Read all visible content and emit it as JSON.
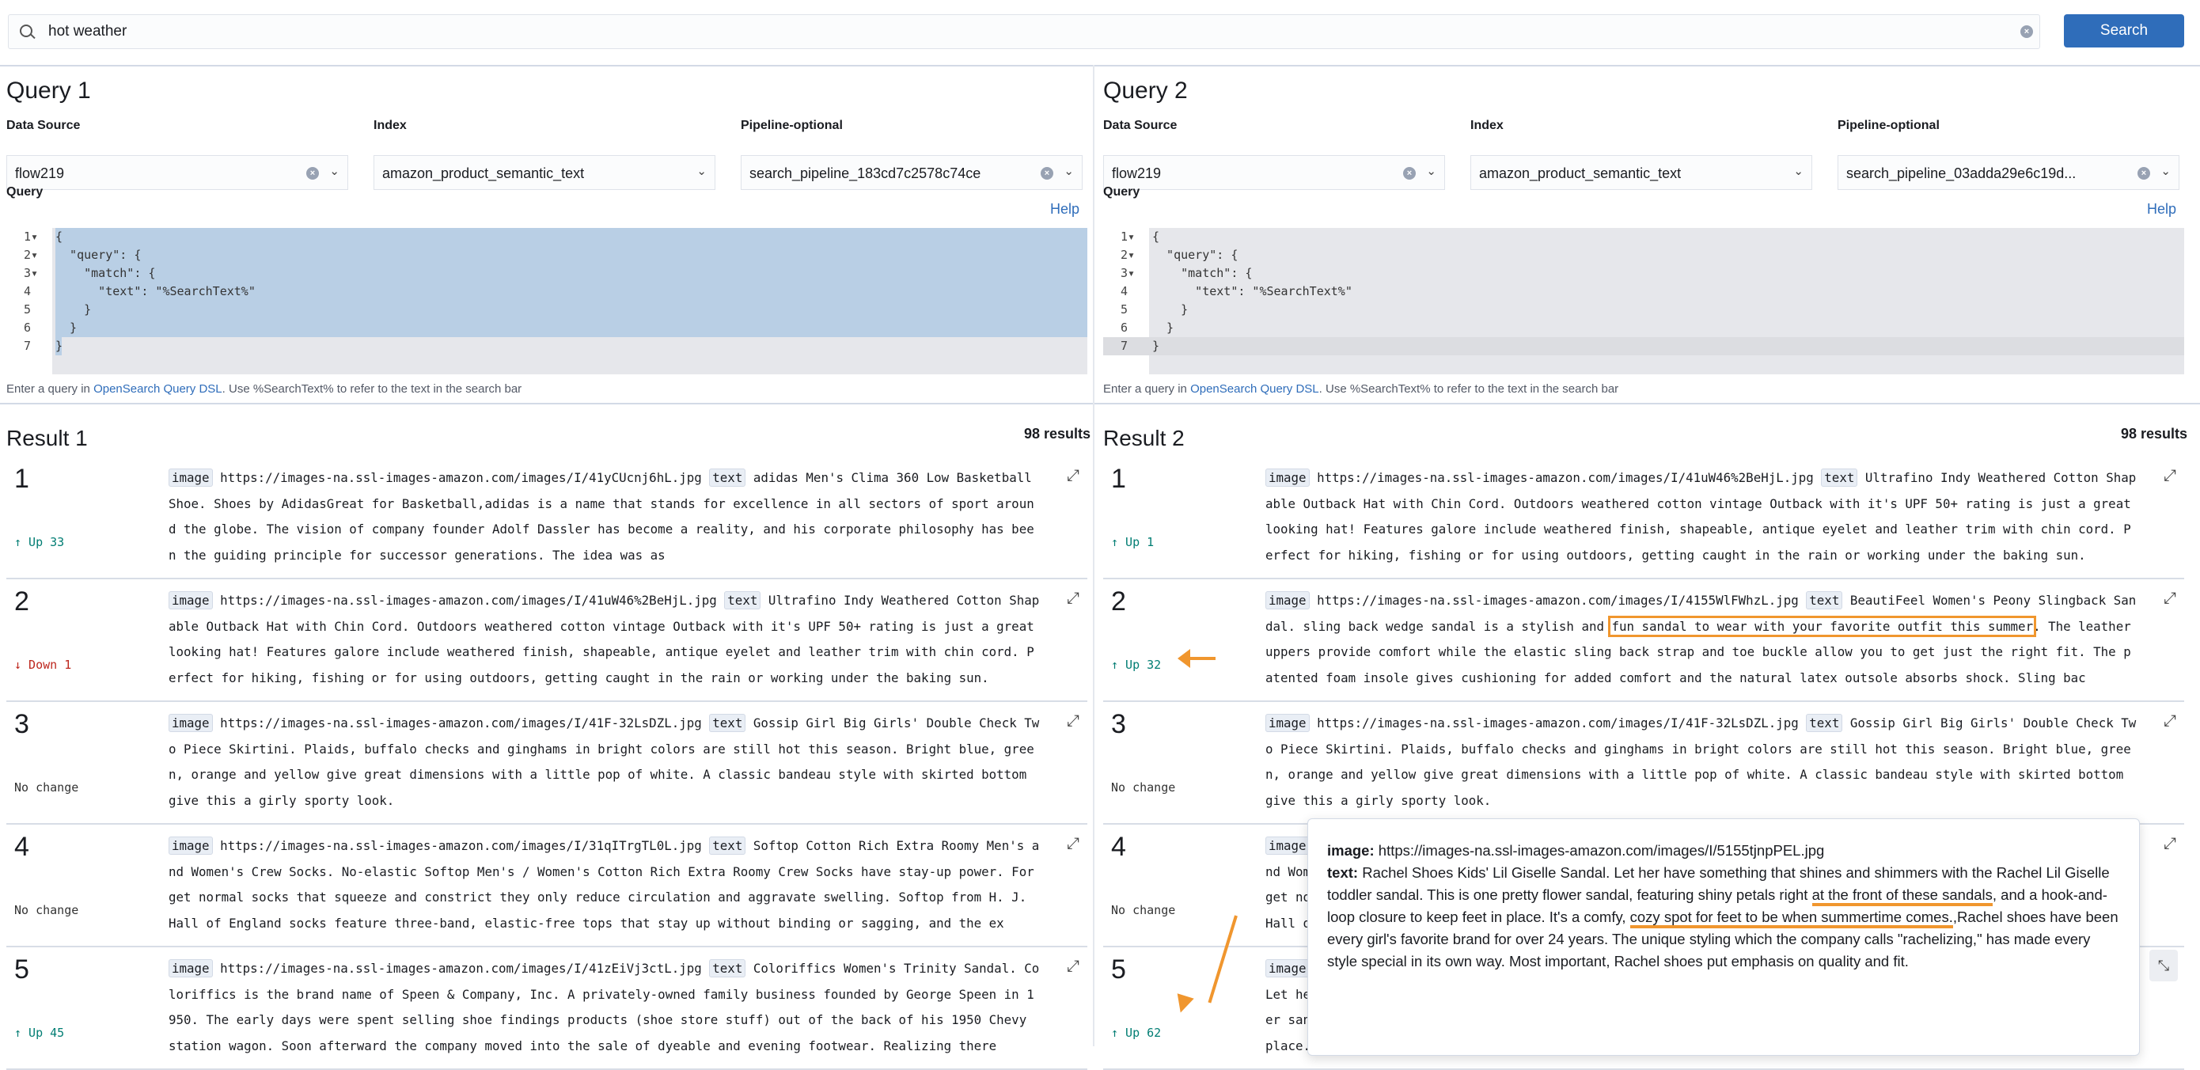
{
  "search": {
    "value": "hot weather",
    "button": "Search"
  },
  "queries": [
    {
      "title": "Query 1",
      "data_source_label": "Data Source",
      "data_source": "flow219",
      "index_label": "Index",
      "index": "amazon_product_semantic_text",
      "pipeline_label": "Pipeline-optional",
      "pipeline": "search_pipeline_183cd7c2578c74ce",
      "query_label": "Query",
      "help": "Help",
      "code": [
        "{",
        "  \"query\": {",
        "    \"match\": {",
        "      \"text\": \"%SearchText%\"",
        "    }",
        "  }",
        "}"
      ],
      "footer_pre": "Enter a query in ",
      "footer_link": "OpenSearch Query DSL",
      "footer_post": ". Use %SearchText% to refer to the text in the search bar"
    },
    {
      "title": "Query 2",
      "data_source_label": "Data Source",
      "data_source": "flow219",
      "index_label": "Index",
      "index": "amazon_product_semantic_text",
      "pipeline_label": "Pipeline-optional",
      "pipeline": "search_pipeline_03adda29e6c19d...",
      "query_label": "Query",
      "help": "Help",
      "code": [
        "{",
        "  \"query\": {",
        "    \"match\": {",
        "      \"text\": \"%SearchText%\"",
        "    }",
        "  }",
        "}"
      ],
      "footer_pre": "Enter a query in ",
      "footer_link": "OpenSearch Query DSL",
      "footer_post": ". Use %SearchText% to refer to the text in the search bar"
    }
  ],
  "results": [
    {
      "title": "Result 1",
      "count": "98 results",
      "rows": [
        {
          "rank": "1",
          "change": "↑ Up 33",
          "dir": "up",
          "image": "https://images-na.ssl-images-amazon.com/images/I/41yCUcnj6hL.jpg",
          "segments": [
            {
              "t": "adidas Men's Clima 360 Low Basketball Shoe. Shoes by AdidasGreat for Basketball,adidas is a name that stands for excellence in all sectors of sport around the globe. The vision of company founder Adolf Dassler has become a reality, and his corporate philosophy has been the guiding principle for successor generations. The idea was as"
            }
          ]
        },
        {
          "rank": "2",
          "change": "↓ Down 1",
          "dir": "down",
          "image": "https://images-na.ssl-images-amazon.com/images/I/41uW46%2BeHjL.jpg",
          "segments": [
            {
              "t": "Ultrafino Indy Weathered Cotton Shapable Outback Hat with Chin Cord. Outdoors weathered cotton vintage Outback with it's UPF 50+ rating is just a great looking hat! Features galore include weathered finish, shapeable, antique eyelet and leather trim with chin cord. Perfect for hiking, fishing or for using outdoors, getting caught in the rain or working under the baking sun."
            }
          ]
        },
        {
          "rank": "3",
          "change": "No change",
          "dir": "none",
          "image": "https://images-na.ssl-images-amazon.com/images/I/41F-32LsDZL.jpg",
          "segments": [
            {
              "t": "Gossip Girl Big Girls' Double Check Two Piece Skirtini. Plaids, buffalo checks and ginghams in bright colors are still hot this season. Bright blue, green, orange and yellow give great dimensions with a little pop of white. A classic bandeau style with skirted bottom give this a girly sporty look."
            }
          ]
        },
        {
          "rank": "4",
          "change": "No change",
          "dir": "none",
          "image": "https://images-na.ssl-images-amazon.com/images/I/31qITrgTL0L.jpg",
          "segments": [
            {
              "t": "Softop Cotton Rich Extra Roomy Men's and Women's Crew Socks. No-elastic Softop Men's / Women's Cotton Rich Extra Roomy Crew Socks have stay-up power. Forget normal socks that squeeze and constrict they only reduce circulation and aggravate swelling. Softop from H. J. Hall of England socks feature three-band, elastic-free tops that stay up without binding or sagging, and the ex"
            }
          ]
        },
        {
          "rank": "5",
          "change": "↑ Up 45",
          "dir": "up",
          "image": "https://images-na.ssl-images-amazon.com/images/I/41zEiVj3ctL.jpg",
          "segments": [
            {
              "t": "Coloriffics Women's Trinity Sandal. Coloriffics is the brand name of Speen & Company, Inc. A privately-owned family business founded by George Speen in 1950. The early days were spent selling shoe findings products (shoe store stuff) out of the back of his 1950 Chevy station wagon. Soon afterward the company moved into the sale of dyeable and evening footwear. Realizing there"
            }
          ]
        }
      ]
    },
    {
      "title": "Result 2",
      "count": "98 results",
      "rows": [
        {
          "rank": "1",
          "change": "↑ Up 1",
          "dir": "up",
          "image": "https://images-na.ssl-images-amazon.com/images/I/41uW46%2BeHjL.jpg",
          "segments": [
            {
              "t": "Ultrafino Indy Weathered Cotton Shapable Outback Hat with Chin Cord. Outdoors weathered cotton vintage Outback with it's UPF 50+ rating is just a great looking hat! Features galore include weathered finish, shapeable, antique eyelet and leather trim with chin cord. Perfect for hiking, fishing or for using outdoors, getting caught in the rain or working under the baking sun."
            }
          ]
        },
        {
          "rank": "2",
          "change": "↑ Up 32",
          "dir": "up",
          "image": "https://images-na.ssl-images-amazon.com/images/I/4155WlFWhzL.jpg",
          "segments": [
            {
              "t": "BeautiFeel Women's Peony Slingback Sandal. sling back wedge sandal is a stylish and "
            },
            {
              "t": "fun sandal to wear with your favorite outfit this summer",
              "hl": true
            },
            {
              "t": ". The leather uppers provide comfort while the elastic sling back strap and toe buckle allow you to get just the right fit. The patented foam insole gives cushioning for added comfort and the natural latex outsole absorbs shock. Sling bac"
            }
          ]
        },
        {
          "rank": "3",
          "change": "No change",
          "dir": "none",
          "image": "https://images-na.ssl-images-amazon.com/images/I/41F-32LsDZL.jpg",
          "segments": [
            {
              "t": "Gossip Girl Big Girls' Double Check Two Piece Skirtini. Plaids, buffalo checks and ginghams in bright colors are still hot this season. Bright blue, green, orange and yellow give great dimensions with a little pop of white. A classic bandeau style with skirted bottom give this a girly sporty look."
            }
          ]
        },
        {
          "rank": "4",
          "change": "No change",
          "dir": "none",
          "image": "https://images-na.ssl-images-amazon.com/images/I/31qITrgTL0L.jpg",
          "segments": [
            {
              "t": "Softop Cotton Rich Extra Roomy Men's and Women's Crew Socks. No-elastic Softop Men's / Women's Cotton Rich Extra Roomy Crew Socks have stay-up power. Forget normal socks that squeeze and constrict they only reduce circulation and aggravate swelling. Softop from H. J. Hall of England socks feature three-band, elastic-free tops that stay up without binding or sagging, and the ex"
            }
          ]
        },
        {
          "rank": "5",
          "change": "↑ Up 62",
          "dir": "up",
          "image": "https://images-na.ssl-images-amazon.com/images/I/5155tjnpPEL.jpg",
          "segments": [
            {
              "t": "Rachel Shoes Kids' Lil Giselle Sandal. Let her have something that shines and shimmers with the Rachel Lil Giselle toddler sandal. This is one pretty flower sandal, featuring shiny petals right at the front of these sandals, and a hook-and-loop closure to keep feet in place. It's a comfy, cozy spot for feet to be when summertime comes."
            }
          ]
        }
      ]
    }
  ],
  "chip_labels": {
    "image": "image",
    "text": "text"
  },
  "popup": {
    "image_label": "image:",
    "image": "https://images-na.ssl-images-amazon.com/images/I/5155tjnpPEL.jpg",
    "text_label": "text:",
    "segments": [
      {
        "t": "Rachel Shoes Kids' Lil Giselle Sandal. Let her have something that shines and shimmers with the Rachel Lil Giselle toddler sandal. This is one pretty flower sandal, featuring shiny petals right "
      },
      {
        "t": "at the front of these sandals",
        "ul": true
      },
      {
        "t": ", and a hook-and-loop closure to keep feet in place. It's a comfy, "
      },
      {
        "t": "cozy spot for feet to be when summertime comes.",
        "ul": true
      },
      {
        "t": ",Rachel shoes have been every girl's favorite brand for over 24 years. The unique styling which the company calls \"rachelizing,\" has made every style special in its own way. Most important, Rachel shoes put emphasis on quality and fit."
      }
    ]
  },
  "colors": {
    "accent": "#2f6dba",
    "up": "#017d73",
    "down": "#bd271e",
    "annotation": "#f0962e",
    "selection": "#b9cfe5"
  }
}
